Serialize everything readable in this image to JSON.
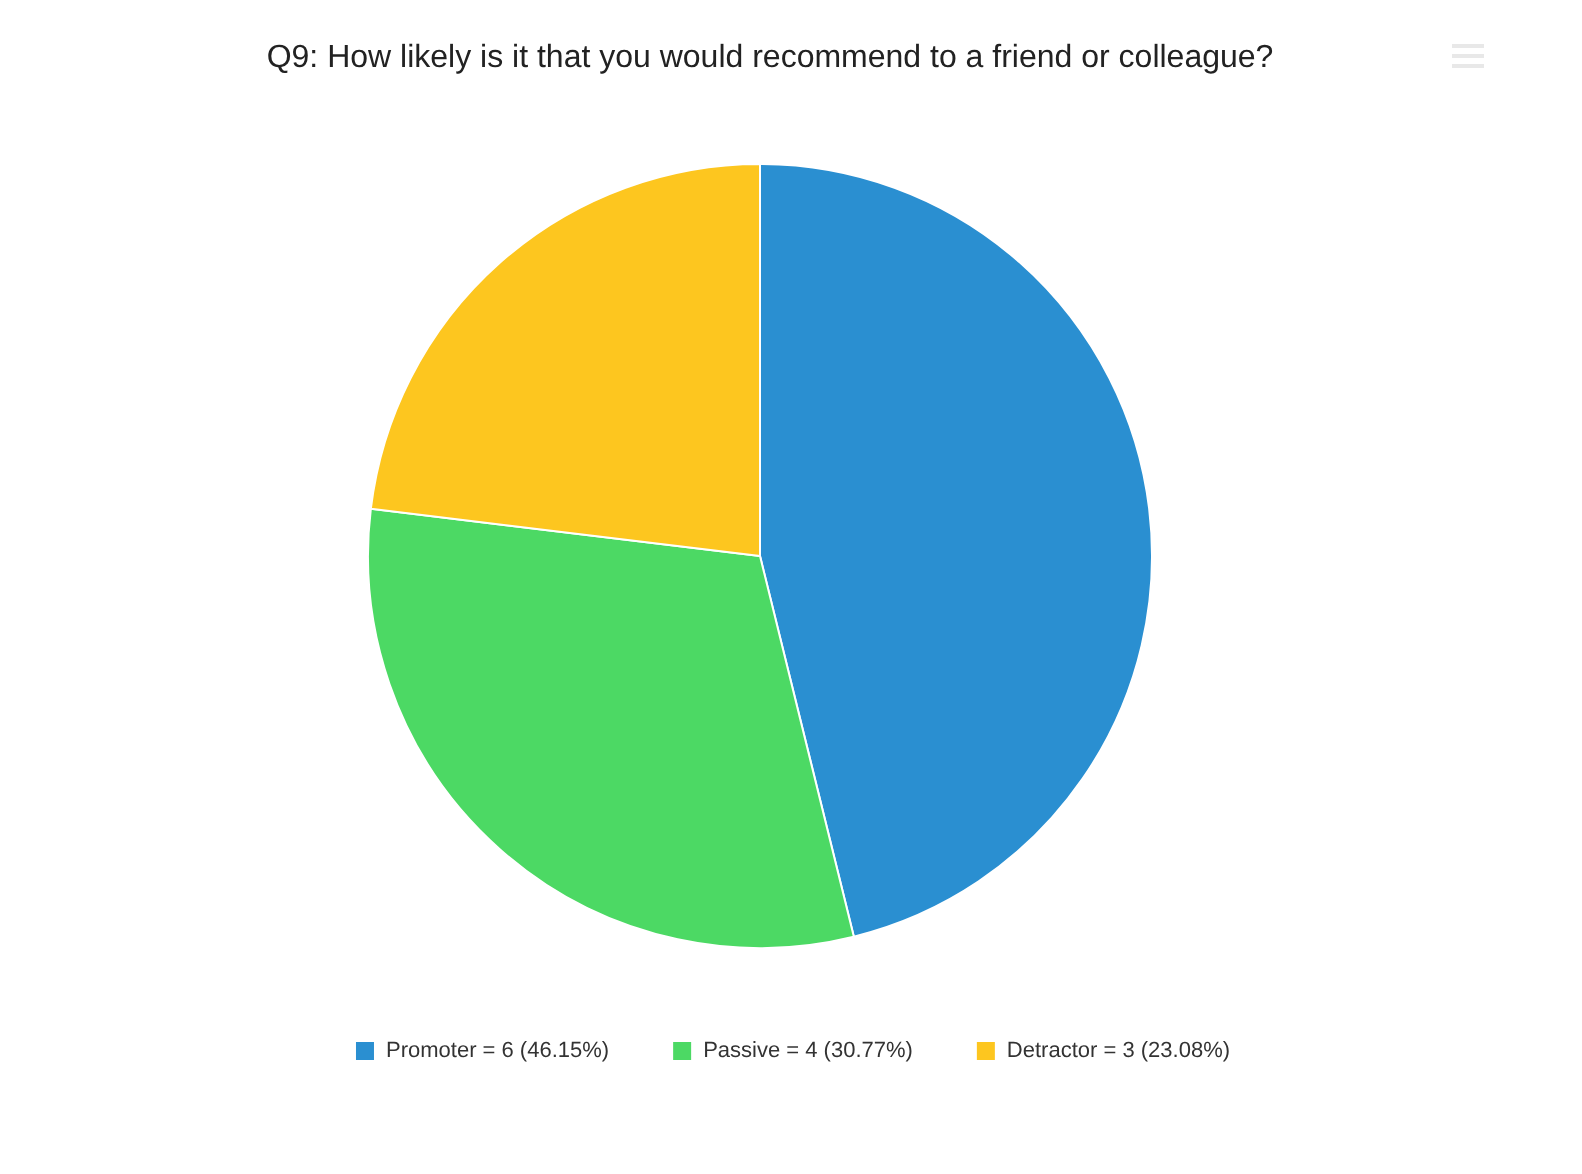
{
  "chart_data": {
    "type": "pie",
    "title": "Q9: How likely is it that you would recommend to a friend or colleague?",
    "categories": [
      "Promoter = 6 (46.15%)",
      "Passive = 4 (30.77%)",
      "Detractor = 3 (23.08%)"
    ],
    "values": [
      6,
      4,
      3
    ],
    "colors": [
      "#2a8fd1",
      "#4cd964",
      "#fdc61f"
    ],
    "legend": "bottom"
  }
}
